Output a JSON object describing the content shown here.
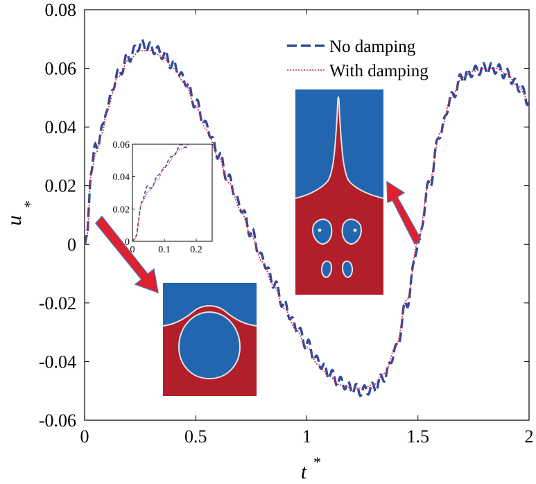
{
  "chart_data": {
    "type": "line",
    "xlabel": "t",
    "xlabel_sup": "*",
    "ylabel": "u",
    "ylabel_sup": "*",
    "xlim": [
      0,
      2
    ],
    "ylim": [
      -0.06,
      0.08
    ],
    "xticks": [
      0,
      0.5,
      1,
      1.5,
      2
    ],
    "xtick_labels": [
      "0",
      "0.5",
      "1",
      "1.5",
      "2"
    ],
    "yticks": [
      -0.06,
      -0.04,
      -0.02,
      0,
      0.02,
      0.04,
      0.06,
      0.08
    ],
    "ytick_labels": [
      "-0.06",
      "-0.04",
      "-0.02",
      "0",
      "0.02",
      "0.04",
      "0.06",
      "0.08"
    ],
    "legend_position": "top-right",
    "series": [
      {
        "name": "No damping",
        "color": "#2e4a9e",
        "style": "dashed",
        "oscillation": 0.0018,
        "x": [
          0,
          0.01,
          0.03,
          0.05,
          0.08,
          0.1,
          0.15,
          0.2,
          0.25,
          0.3,
          0.35,
          0.4,
          0.45,
          0.5,
          0.55,
          0.6,
          0.65,
          0.7,
          0.75,
          0.8,
          0.85,
          0.9,
          0.95,
          1.0,
          1.05,
          1.1,
          1.15,
          1.2,
          1.25,
          1.3,
          1.35,
          1.4,
          1.45,
          1.5,
          1.55,
          1.6,
          1.65,
          1.7,
          1.75,
          1.8,
          1.85,
          1.9,
          1.95,
          2.0
        ],
        "y": [
          0,
          0.003,
          0.026,
          0.033,
          0.039,
          0.047,
          0.058,
          0.064,
          0.068,
          0.067,
          0.065,
          0.061,
          0.056,
          0.048,
          0.04,
          0.031,
          0.022,
          0.013,
          0.004,
          -0.005,
          -0.013,
          -0.021,
          -0.028,
          -0.034,
          -0.04,
          -0.044,
          -0.047,
          -0.049,
          -0.05,
          -0.049,
          -0.045,
          -0.036,
          -0.02,
          0.0,
          0.02,
          0.038,
          0.05,
          0.057,
          0.059,
          0.06,
          0.06,
          0.058,
          0.054,
          0.049
        ]
      },
      {
        "name": "With damping",
        "color": "#e0202e",
        "style": "dotted",
        "oscillation": 0,
        "x": [
          0,
          0.01,
          0.03,
          0.05,
          0.08,
          0.1,
          0.15,
          0.2,
          0.25,
          0.3,
          0.35,
          0.4,
          0.45,
          0.5,
          0.55,
          0.6,
          0.65,
          0.7,
          0.75,
          0.8,
          0.85,
          0.9,
          0.95,
          1.0,
          1.05,
          1.1,
          1.15,
          1.2,
          1.25,
          1.3,
          1.35,
          1.4,
          1.45,
          1.5,
          1.55,
          1.6,
          1.65,
          1.7,
          1.75,
          1.8,
          1.85,
          1.9,
          1.95,
          2.0
        ],
        "y": [
          0,
          0.002,
          0.024,
          0.031,
          0.038,
          0.046,
          0.057,
          0.063,
          0.066,
          0.066,
          0.064,
          0.06,
          0.055,
          0.047,
          0.039,
          0.03,
          0.021,
          0.012,
          0.003,
          -0.006,
          -0.014,
          -0.022,
          -0.029,
          -0.035,
          -0.041,
          -0.045,
          -0.048,
          -0.049,
          -0.049,
          -0.048,
          -0.044,
          -0.035,
          -0.019,
          0.001,
          0.021,
          0.038,
          0.05,
          0.057,
          0.059,
          0.06,
          0.06,
          0.058,
          0.054,
          0.049
        ]
      }
    ],
    "inset": {
      "xlim": [
        0,
        0.25
      ],
      "ylim": [
        0,
        0.06
      ],
      "xticks": [
        0,
        0.1,
        0.2
      ],
      "xtick_labels": [
        "0",
        "0.1",
        "0.2"
      ],
      "yticks": [
        0,
        0.02,
        0.04,
        0.06
      ],
      "ytick_labels": [
        "0",
        "0.02",
        "0.04",
        "0.06"
      ]
    },
    "annotations": {
      "arrow_color": "#e0202e",
      "arrow_border": "#5a6aa8",
      "interface_color": "#e4e4e4",
      "fluid_top": "#2266b0",
      "fluid_bottom": "#b21f2a"
    }
  }
}
